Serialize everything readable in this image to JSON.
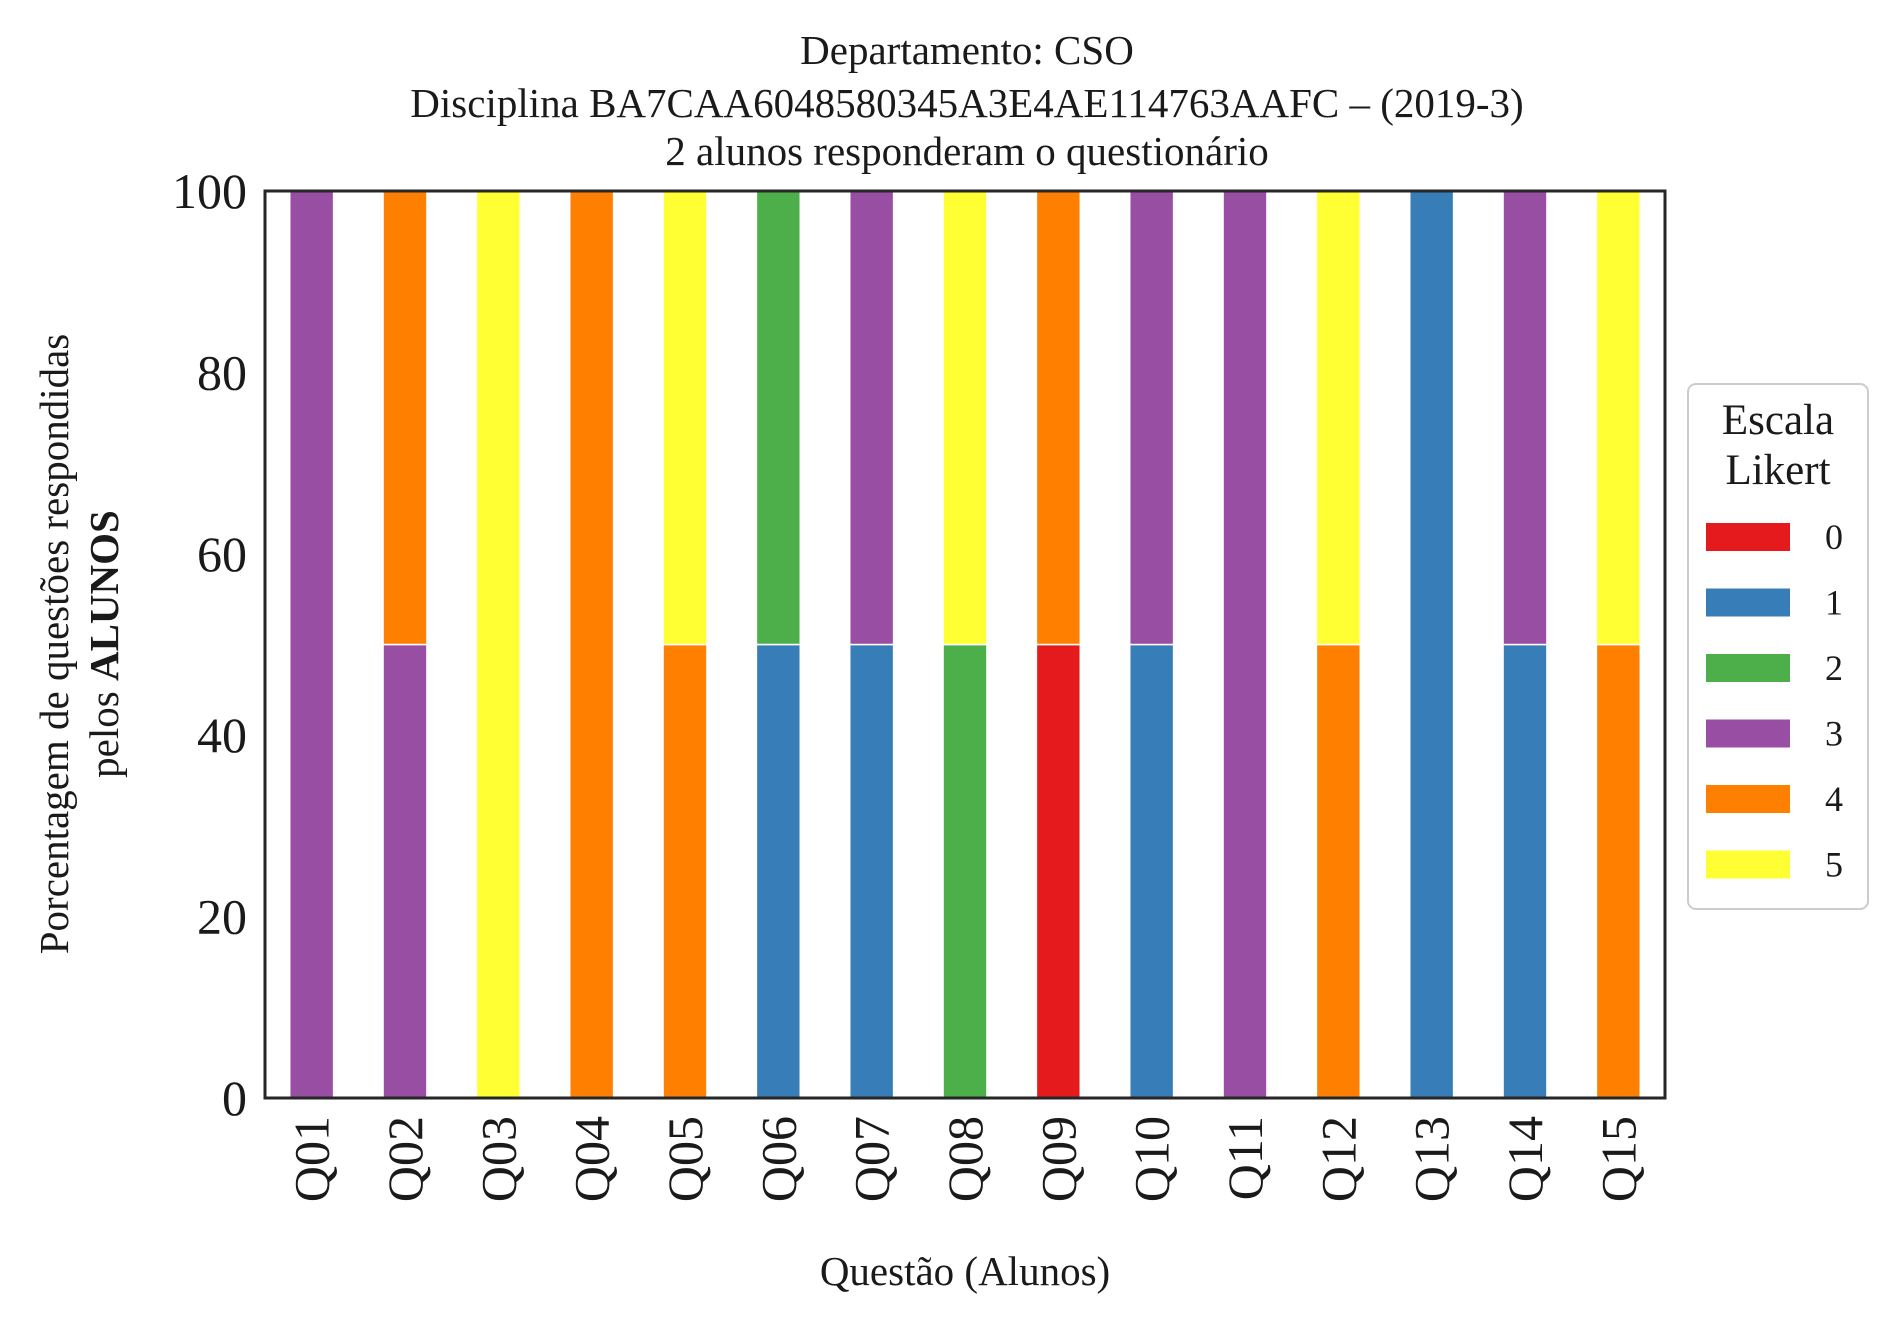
{
  "chart_data": {
    "type": "bar",
    "stacked": true,
    "title_lines": [
      "Departamento: CSO",
      "Disciplina BA7CAA6048580345A3E4AE114763AAFC – (2019-3)",
      "2 alunos responderam o questionário"
    ],
    "xlabel": "Questão (Alunos)",
    "ylabel_line1": "Porcentagem de questões respondidas",
    "ylabel_line2_prefix": "pelos ",
    "ylabel_line2_bold": "ALUNOS",
    "ylim": [
      0,
      100
    ],
    "yticks": [
      "0",
      "20",
      "40",
      "60",
      "80",
      "100"
    ],
    "grid": false,
    "legend_position": "right",
    "legend_title_lines": [
      "Escala",
      "Likert"
    ],
    "categories": [
      "Q01",
      "Q02",
      "Q03",
      "Q04",
      "Q05",
      "Q06",
      "Q07",
      "Q08",
      "Q09",
      "Q10",
      "Q11",
      "Q12",
      "Q13",
      "Q14",
      "Q15"
    ],
    "series": [
      {
        "name": "0",
        "color": "#e41a1c",
        "values": [
          0,
          0,
          0,
          0,
          0,
          0,
          0,
          0,
          50,
          0,
          0,
          0,
          0,
          0,
          0
        ]
      },
      {
        "name": "1",
        "color": "#377eb8",
        "values": [
          0,
          0,
          0,
          0,
          0,
          50,
          50,
          0,
          0,
          50,
          0,
          0,
          100,
          50,
          0
        ]
      },
      {
        "name": "2",
        "color": "#4daf4a",
        "values": [
          0,
          0,
          0,
          0,
          0,
          50,
          0,
          50,
          0,
          0,
          0,
          0,
          0,
          0,
          0
        ]
      },
      {
        "name": "3",
        "color": "#984ea3",
        "values": [
          100,
          50,
          0,
          0,
          0,
          0,
          50,
          0,
          0,
          50,
          100,
          0,
          0,
          50,
          0
        ]
      },
      {
        "name": "4",
        "color": "#ff7f00",
        "values": [
          0,
          50,
          0,
          100,
          50,
          0,
          0,
          0,
          50,
          0,
          0,
          50,
          0,
          0,
          50
        ]
      },
      {
        "name": "5",
        "color": "#ffff33",
        "values": [
          0,
          0,
          100,
          0,
          50,
          0,
          0,
          50,
          0,
          0,
          0,
          50,
          0,
          0,
          50
        ]
      }
    ]
  }
}
